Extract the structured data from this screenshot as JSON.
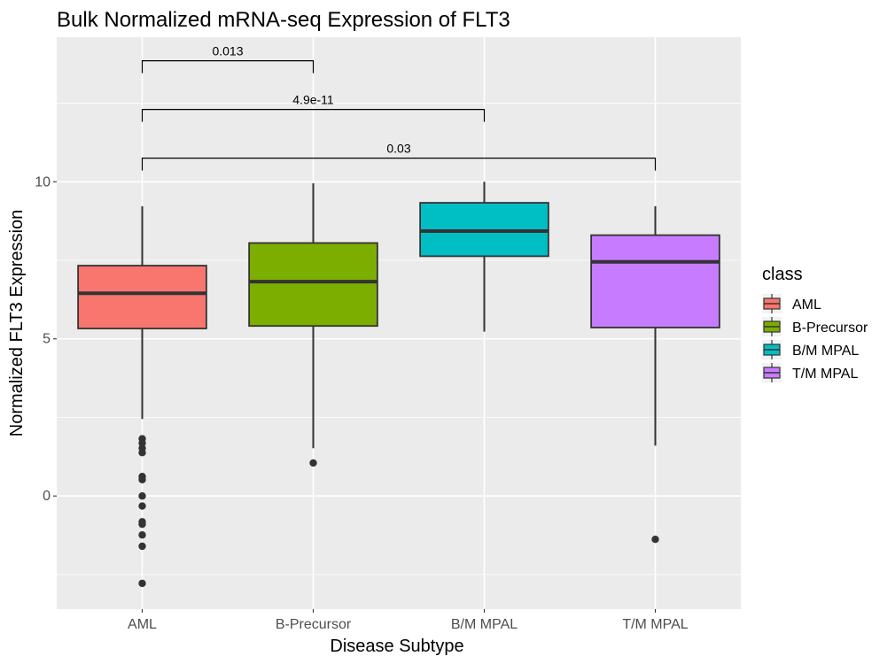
{
  "chart_data": {
    "type": "boxplot",
    "title": "Bulk Normalized mRNA-seq Expression of FLT3",
    "xlabel": "Disease Subtype",
    "ylabel": "Normalized FLT3 Expression",
    "ylim": [
      -3.6,
      14.6
    ],
    "y_ticks": [
      0,
      5,
      10
    ],
    "grid": true,
    "legend": {
      "title": "class",
      "position": "right"
    },
    "categories": [
      "AML",
      "B-Precursor",
      "B/M MPAL",
      "T/M MPAL"
    ],
    "boxes": [
      {
        "category": "AML",
        "color": "#F8766D",
        "min": 2.45,
        "q1": 5.33,
        "median": 6.45,
        "q3": 7.33,
        "max": 9.22,
        "outliers": [
          1.82,
          1.68,
          1.52,
          1.38,
          0.62,
          0.52,
          0.0,
          -0.32,
          -0.82,
          -0.9,
          -1.24,
          -1.6,
          -2.78
        ]
      },
      {
        "category": "B-Precursor",
        "color": "#7CAE00",
        "min": 1.52,
        "q1": 5.41,
        "median": 6.82,
        "q3": 8.05,
        "max": 9.95,
        "outliers": [
          1.05
        ]
      },
      {
        "category": "B/M MPAL",
        "color": "#00BFC4",
        "min": 5.23,
        "q1": 7.63,
        "median": 8.43,
        "q3": 9.33,
        "max": 10.0,
        "outliers": []
      },
      {
        "category": "T/M MPAL",
        "color": "#C77CFF",
        "min": 1.6,
        "q1": 5.36,
        "median": 7.45,
        "q3": 8.3,
        "max": 9.22,
        "outliers": [
          -1.38
        ]
      }
    ],
    "comparisons": [
      {
        "from": "AML",
        "to": "B-Precursor",
        "label": "0.013",
        "y": 13.85
      },
      {
        "from": "AML",
        "to": "B/M MPAL",
        "label": "4.9e-11",
        "y": 12.3
      },
      {
        "from": "AML",
        "to": "T/M MPAL",
        "label": "0.03",
        "y": 10.75
      }
    ]
  }
}
